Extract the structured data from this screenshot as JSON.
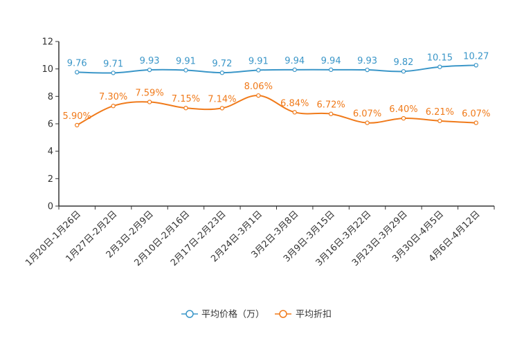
{
  "chart_data": {
    "type": "line",
    "title": "",
    "xlabel": "",
    "ylabel": "",
    "ylim": [
      0,
      12
    ],
    "yticks": [
      0,
      2,
      4,
      6,
      8,
      10,
      12
    ],
    "grid": false,
    "legend_position": "bottom-center",
    "categories": [
      "1月20日-1月26日",
      "1月27日-2月2日",
      "2月3日-2月9日",
      "2月10日-2月16日",
      "2月17日-2月23日",
      "2月24日-3月1日",
      "3月2日-3月8日",
      "3月9日-3月15日",
      "3月16日-3月22日",
      "3月23日-3月29日",
      "3月30日-4月5日",
      "4月6日-4月12日"
    ],
    "series": [
      {
        "name": "平均价格（万）",
        "color": "#3a96c8",
        "values": [
          9.76,
          9.71,
          9.93,
          9.91,
          9.72,
          9.91,
          9.94,
          9.94,
          9.93,
          9.82,
          10.15,
          10.27
        ],
        "labels": [
          "9.76",
          "9.71",
          "9.93",
          "9.91",
          "9.72",
          "9.91",
          "9.94",
          "9.94",
          "9.93",
          "9.82",
          "10.15",
          "10.27"
        ]
      },
      {
        "name": "平均折扣",
        "color": "#f07a1a",
        "values": [
          5.9,
          7.3,
          7.59,
          7.15,
          7.14,
          8.06,
          6.84,
          6.72,
          6.07,
          6.4,
          6.21,
          6.07
        ],
        "labels": [
          "5.90%",
          "7.30%",
          "7.59%",
          "7.15%",
          "7.14%",
          "8.06%",
          "6.84%",
          "6.72%",
          "6.07%",
          "6.40%",
          "6.21%",
          "6.07%"
        ]
      }
    ]
  }
}
